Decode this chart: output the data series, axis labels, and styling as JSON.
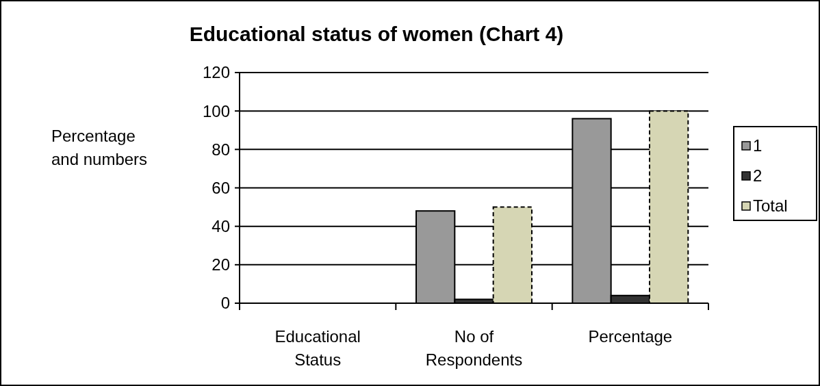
{
  "chart_data": {
    "type": "bar",
    "title": "Educational status of women (Chart 4)",
    "ylabel": "Percentage and numbers",
    "categories": [
      "Educational Status",
      "No of Respondents",
      "Percentage"
    ],
    "series": [
      {
        "name": "1",
        "color": "#999999",
        "values": [
          null,
          48,
          96
        ]
      },
      {
        "name": "2",
        "color": "#333333",
        "values": [
          null,
          2,
          4
        ]
      },
      {
        "name": "Total",
        "color": "#d6d6b4",
        "values": [
          null,
          50,
          100
        ],
        "line_style": "dashed"
      }
    ],
    "ylim": [
      0,
      120
    ],
    "yticks": [
      0,
      20,
      40,
      60,
      80,
      100,
      120
    ],
    "grid": "y",
    "legend": "right"
  }
}
